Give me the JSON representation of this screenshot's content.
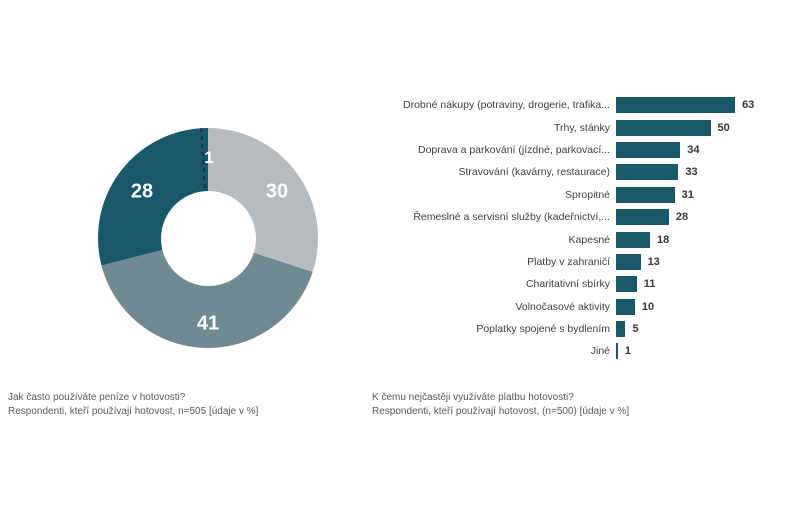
{
  "chart_data": [
    {
      "type": "pie",
      "subtype": "donut",
      "question": "Jak často používáte peníze v hotovosti?",
      "note": "Respondenti, kteří používají hotovost, n=505 [údaje v %]",
      "units": "%",
      "labels": [
        "30",
        "41",
        "28",
        "1"
      ],
      "values": [
        30,
        41,
        28,
        1
      ],
      "colors": [
        "#b5bbbf",
        "#6f8a93",
        "#19586a",
        "#19586a"
      ],
      "start_angle_deg": 0,
      "direction": "clockwise",
      "inner_radius_ratio": 0.43,
      "separator": {
        "after_percent": 99,
        "style": "dashed",
        "color": "#0b3844"
      },
      "label_color": "#ffffff",
      "legend": false
    },
    {
      "type": "bar",
      "orientation": "horizontal",
      "question": "K čemu nejčastěji využíváte platbu hotovosti?",
      "note": "Respondenti, kteří používají hotovost, (n=500) [údaje v %]",
      "units": "%",
      "bar_color": "#19586a",
      "value_label_color": "#363636",
      "xlim": [
        0,
        70
      ],
      "grid": false,
      "legend": false,
      "data_labels": true,
      "categories": [
        "Drobné nákupy (potraviny, drogerie, trafika...",
        "Trhy, stánky",
        "Doprava a parkování (jízdné, parkovací...",
        "Stravování (kavárny, restaurace)",
        "Spropitné",
        "Řemeslné a servisní služby (kadeřnictví,...",
        "Kapesné",
        "Platby v zahraničí",
        "Charitativní sbírky",
        "Volnočasové aktivity",
        "Poplatky spojené s bydlením",
        "Jiné"
      ],
      "values": [
        63,
        50,
        34,
        33,
        31,
        28,
        18,
        13,
        11,
        10,
        5,
        1
      ]
    }
  ]
}
